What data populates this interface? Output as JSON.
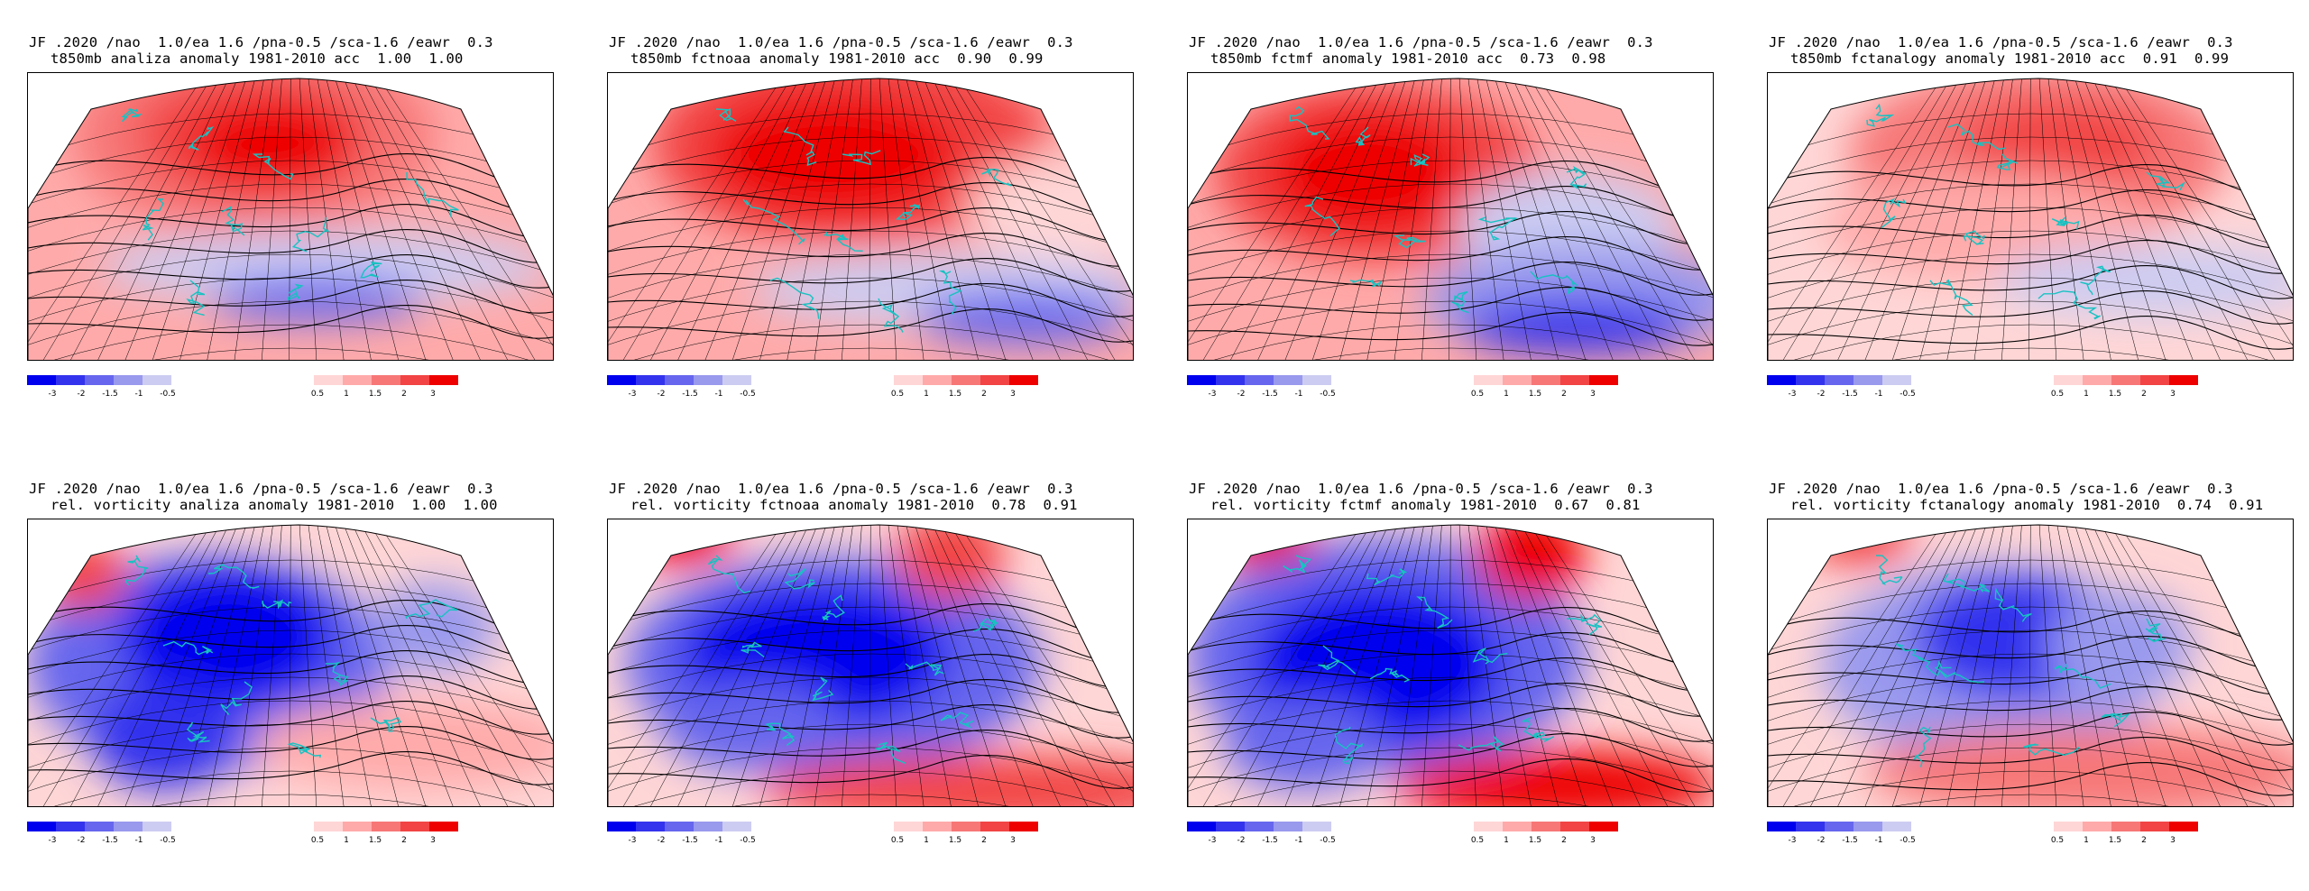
{
  "colors": {
    "neg": [
      "#0000ee",
      "#3333ee",
      "#6666ee",
      "#9999ee",
      "#ccccf2"
    ],
    "pos": [
      "#ffd6d6",
      "#ffaaaa",
      "#f77777",
      "#f24444",
      "#ee0000"
    ],
    "coast": "#17c2c2"
  },
  "colorbar": {
    "neg_labels": [
      "-3",
      "-2",
      "-1.5",
      "-1",
      "-0.5"
    ],
    "pos_labels": [
      "0.5",
      "1",
      "1.5",
      "2",
      "3"
    ]
  },
  "panels": [
    {
      "line1": "JF .2020 /nao  1.0/ea 1.6 /pna-0.5 /sca-1.6 /eawr  0.3",
      "line2": "t850mb analiza anomaly 1981-2010 acc  1.00  1.00"
    },
    {
      "line1": "JF .2020 /nao  1.0/ea 1.6 /pna-0.5 /sca-1.6 /eawr  0.3",
      "line2": "t850mb fctnoaa anomaly 1981-2010 acc  0.90  0.99"
    },
    {
      "line1": "JF .2020 /nao  1.0/ea 1.6 /pna-0.5 /sca-1.6 /eawr  0.3",
      "line2": "t850mb fctmf anomaly 1981-2010 acc  0.73  0.98"
    },
    {
      "line1": "JF .2020 /nao  1.0/ea 1.6 /pna-0.5 /sca-1.6 /eawr  0.3",
      "line2": "t850mb fctanalogy anomaly 1981-2010 acc  0.91  0.99"
    },
    {
      "line1": "JF .2020 /nao  1.0/ea 1.6 /pna-0.5 /sca-1.6 /eawr  0.3",
      "line2": "rel. vorticity analiza anomaly 1981-2010  1.00  1.00"
    },
    {
      "line1": "JF .2020 /nao  1.0/ea 1.6 /pna-0.5 /sca-1.6 /eawr  0.3",
      "line2": "rel. vorticity fctnoaa anomaly 1981-2010  0.78  0.91"
    },
    {
      "line1": "JF .2020 /nao  1.0/ea 1.6 /pna-0.5 /sca-1.6 /eawr  0.3",
      "line2": "rel. vorticity fctmf anomaly 1981-2010  0.67  0.81"
    },
    {
      "line1": "JF .2020 /nao  1.0/ea 1.6 /pna-0.5 /sca-1.6 /eawr  0.3",
      "line2": "rel. vorticity fctanalogy anomaly 1981-2010  0.74  0.91"
    }
  ]
}
